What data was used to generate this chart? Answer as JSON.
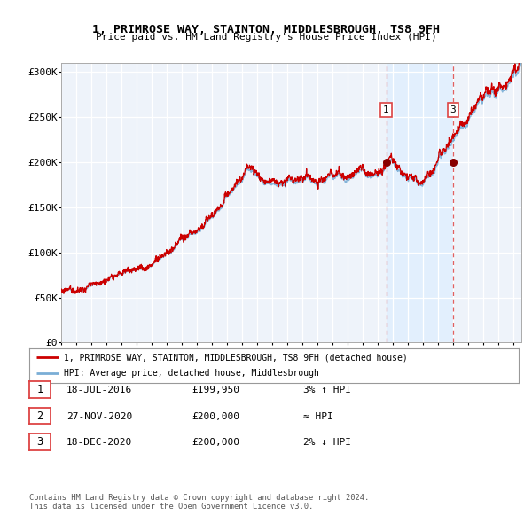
{
  "title": "1, PRIMROSE WAY, STAINTON, MIDDLESBROUGH, TS8 9FH",
  "subtitle": "Price paid vs. HM Land Registry's House Price Index (HPI)",
  "ylabel_values": [
    "£0",
    "£50K",
    "£100K",
    "£150K",
    "£200K",
    "£250K",
    "£300K"
  ],
  "yticks": [
    0,
    50000,
    100000,
    150000,
    200000,
    250000,
    300000
  ],
  "ylim": [
    0,
    310000
  ],
  "xlim_start": 1995.0,
  "xlim_end": 2025.5,
  "hpi_color": "#7aaed6",
  "price_color": "#cc0000",
  "dashed_color": "#dd4444",
  "shade_color": "#ddeeff",
  "background_color": "#eef3fa",
  "legend_text1": "1, PRIMROSE WAY, STAINTON, MIDDLESBROUGH, TS8 9FH (detached house)",
  "legend_text2": "HPI: Average price, detached house, Middlesbrough",
  "sale1_label": "1",
  "sale1_date": "18-JUL-2016",
  "sale1_price": "£199,950",
  "sale1_hpi": "3% ↑ HPI",
  "sale1_x": 2016.54,
  "sale1_y": 199950,
  "sale2_label": "2",
  "sale2_date": "27-NOV-2020",
  "sale2_price": "£200,000",
  "sale2_hpi": "≈ HPI",
  "sale2_x": 2020.91,
  "sale2_y": 200000,
  "sale3_label": "3",
  "sale3_date": "18-DEC-2020",
  "sale3_price": "£200,000",
  "sale3_hpi": "2% ↓ HPI",
  "sale3_x": 2020.96,
  "sale3_y": 200000,
  "footer1": "Contains HM Land Registry data © Crown copyright and database right 2024.",
  "footer2": "This data is licensed under the Open Government Licence v3.0."
}
